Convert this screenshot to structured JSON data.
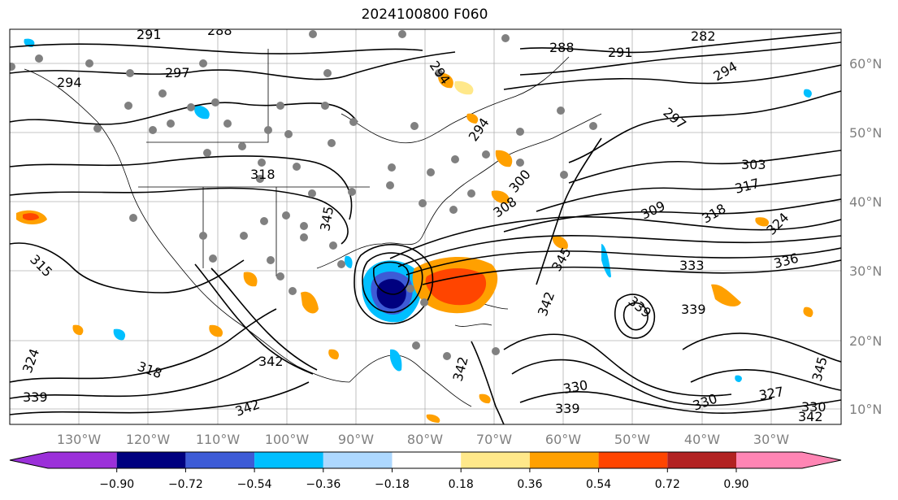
{
  "title": "2024100800 F060",
  "lat_labels": [
    "60°N",
    "50°N",
    "40°N",
    "30°N",
    "20°N",
    "10°N"
  ],
  "lon_labels": [
    "130°W",
    "120°W",
    "110°W",
    "100°W",
    "90°W",
    "80°W",
    "70°W",
    "60°W",
    "50°W",
    "40°W",
    "30°W"
  ],
  "colorbar": {
    "ticks": [
      "−0.90",
      "−0.72",
      "−0.54",
      "−0.36",
      "−0.18",
      "0.18",
      "0.36",
      "0.54",
      "0.72",
      "0.90"
    ],
    "colors": [
      "#9b30d9",
      "#00007f",
      "#3d5bd6",
      "#00bfff",
      "#add8ff",
      "#ffffff",
      "#ffe88a",
      "#ffa000",
      "#ff4500",
      "#b22222",
      "#ff85b4"
    ]
  },
  "contour_labels": [
    "291",
    "288",
    "297",
    "294",
    "294",
    "288",
    "291",
    "282",
    "294",
    "297",
    "294",
    "318",
    "303",
    "317",
    "308",
    "300",
    "309",
    "318",
    "324",
    "315",
    "333",
    "339",
    "345",
    "342",
    "336",
    "339",
    "345",
    "342",
    "318",
    "324",
    "339",
    "330",
    "327",
    "342",
    "330",
    "339",
    "342",
    "330",
    "342",
    "345"
  ]
}
